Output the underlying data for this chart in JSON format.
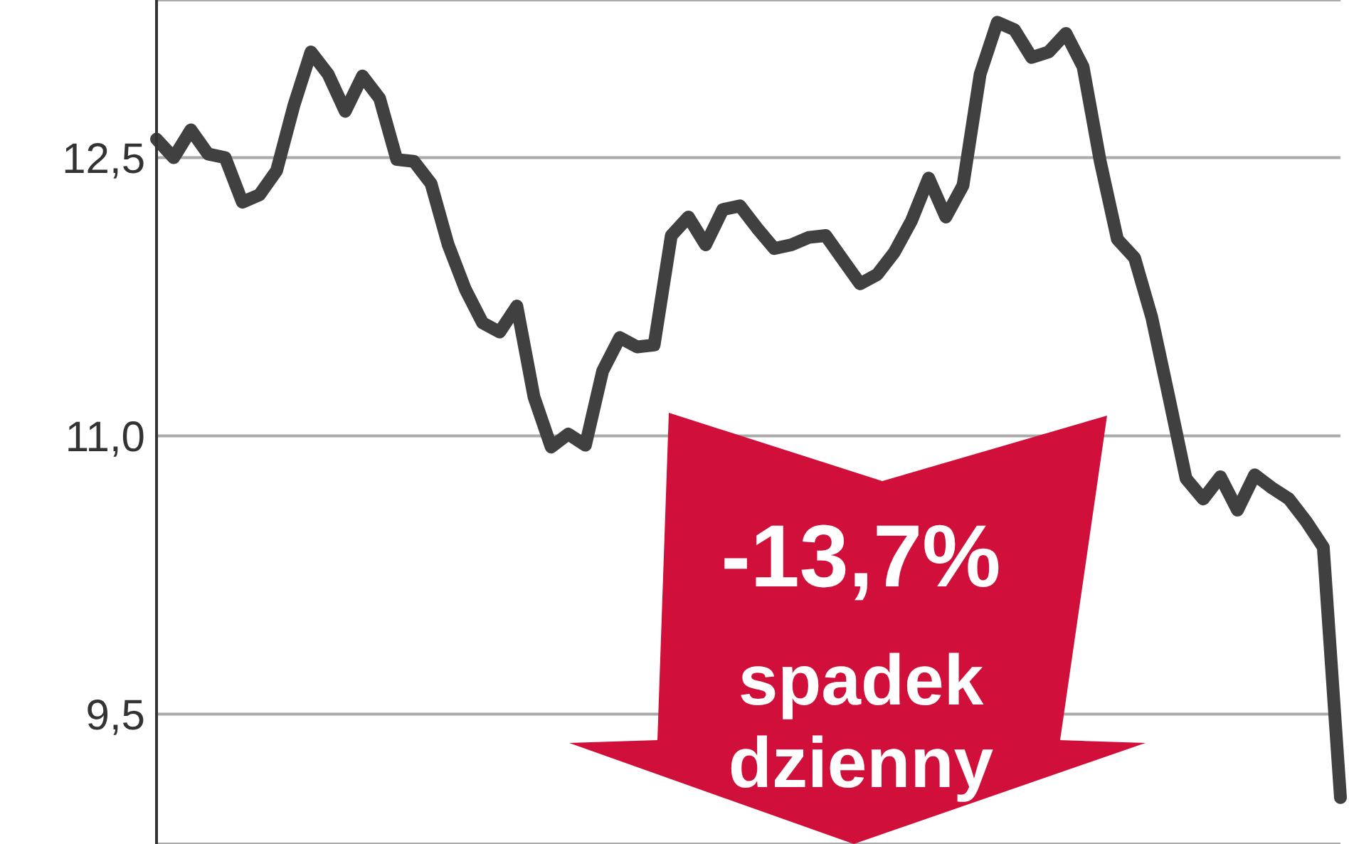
{
  "chart_data": {
    "type": "line",
    "categories": [
      null,
      null,
      null,
      null,
      null,
      null,
      null,
      null,
      null,
      null,
      null,
      null,
      null,
      null,
      null,
      null,
      null,
      null,
      null,
      null,
      null,
      null,
      null,
      null,
      null,
      null,
      null,
      null,
      null,
      null,
      null,
      null,
      null,
      null,
      null,
      null,
      null,
      null,
      null,
      null,
      null,
      null,
      null,
      null,
      null,
      null,
      null,
      null,
      null,
      null,
      null,
      null,
      null,
      null,
      null,
      null,
      null,
      null,
      null,
      null,
      null,
      null,
      null,
      null,
      null,
      null,
      null,
      null,
      null,
      null
    ],
    "series": [
      {
        "color": "#404040",
        "values": [
          12.6,
          12.5,
          12.65,
          12.52,
          12.5,
          12.26,
          12.3,
          12.43,
          12.78,
          13.07,
          12.95,
          12.75,
          12.94,
          12.82,
          12.49,
          12.48,
          12.36,
          12.03,
          11.79,
          11.61,
          11.56,
          11.7,
          11.21,
          10.94,
          11.01,
          10.95,
          11.35,
          11.53,
          11.48,
          11.49,
          12.08,
          12.18,
          12.03,
          12.22,
          12.24,
          12.12,
          12.01,
          12.03,
          12.07,
          12.08,
          11.95,
          11.82,
          11.87,
          11.99,
          12.16,
          12.39,
          12.18,
          12.35,
          12.95,
          13.23,
          13.19,
          13.04,
          13.07,
          13.17,
          12.99,
          12.48,
          12.06,
          11.96,
          11.64,
          11.21,
          10.77,
          10.66,
          10.78,
          10.6,
          10.79,
          10.72,
          10.66,
          10.54,
          10.4,
          9.05
        ]
      }
    ],
    "ylim": [
      8.8,
      13.35
    ],
    "yticks": [
      {
        "value": 12.5,
        "label": "12,5"
      },
      {
        "value": 11.0,
        "label": "11,0"
      },
      {
        "value": 9.5,
        "label": "9,5"
      }
    ],
    "grid": "y",
    "tick_labels": "y",
    "marker": "none",
    "line_style": "solid",
    "annotations": [
      "-13,7%",
      "spadek dzienny"
    ]
  }
}
